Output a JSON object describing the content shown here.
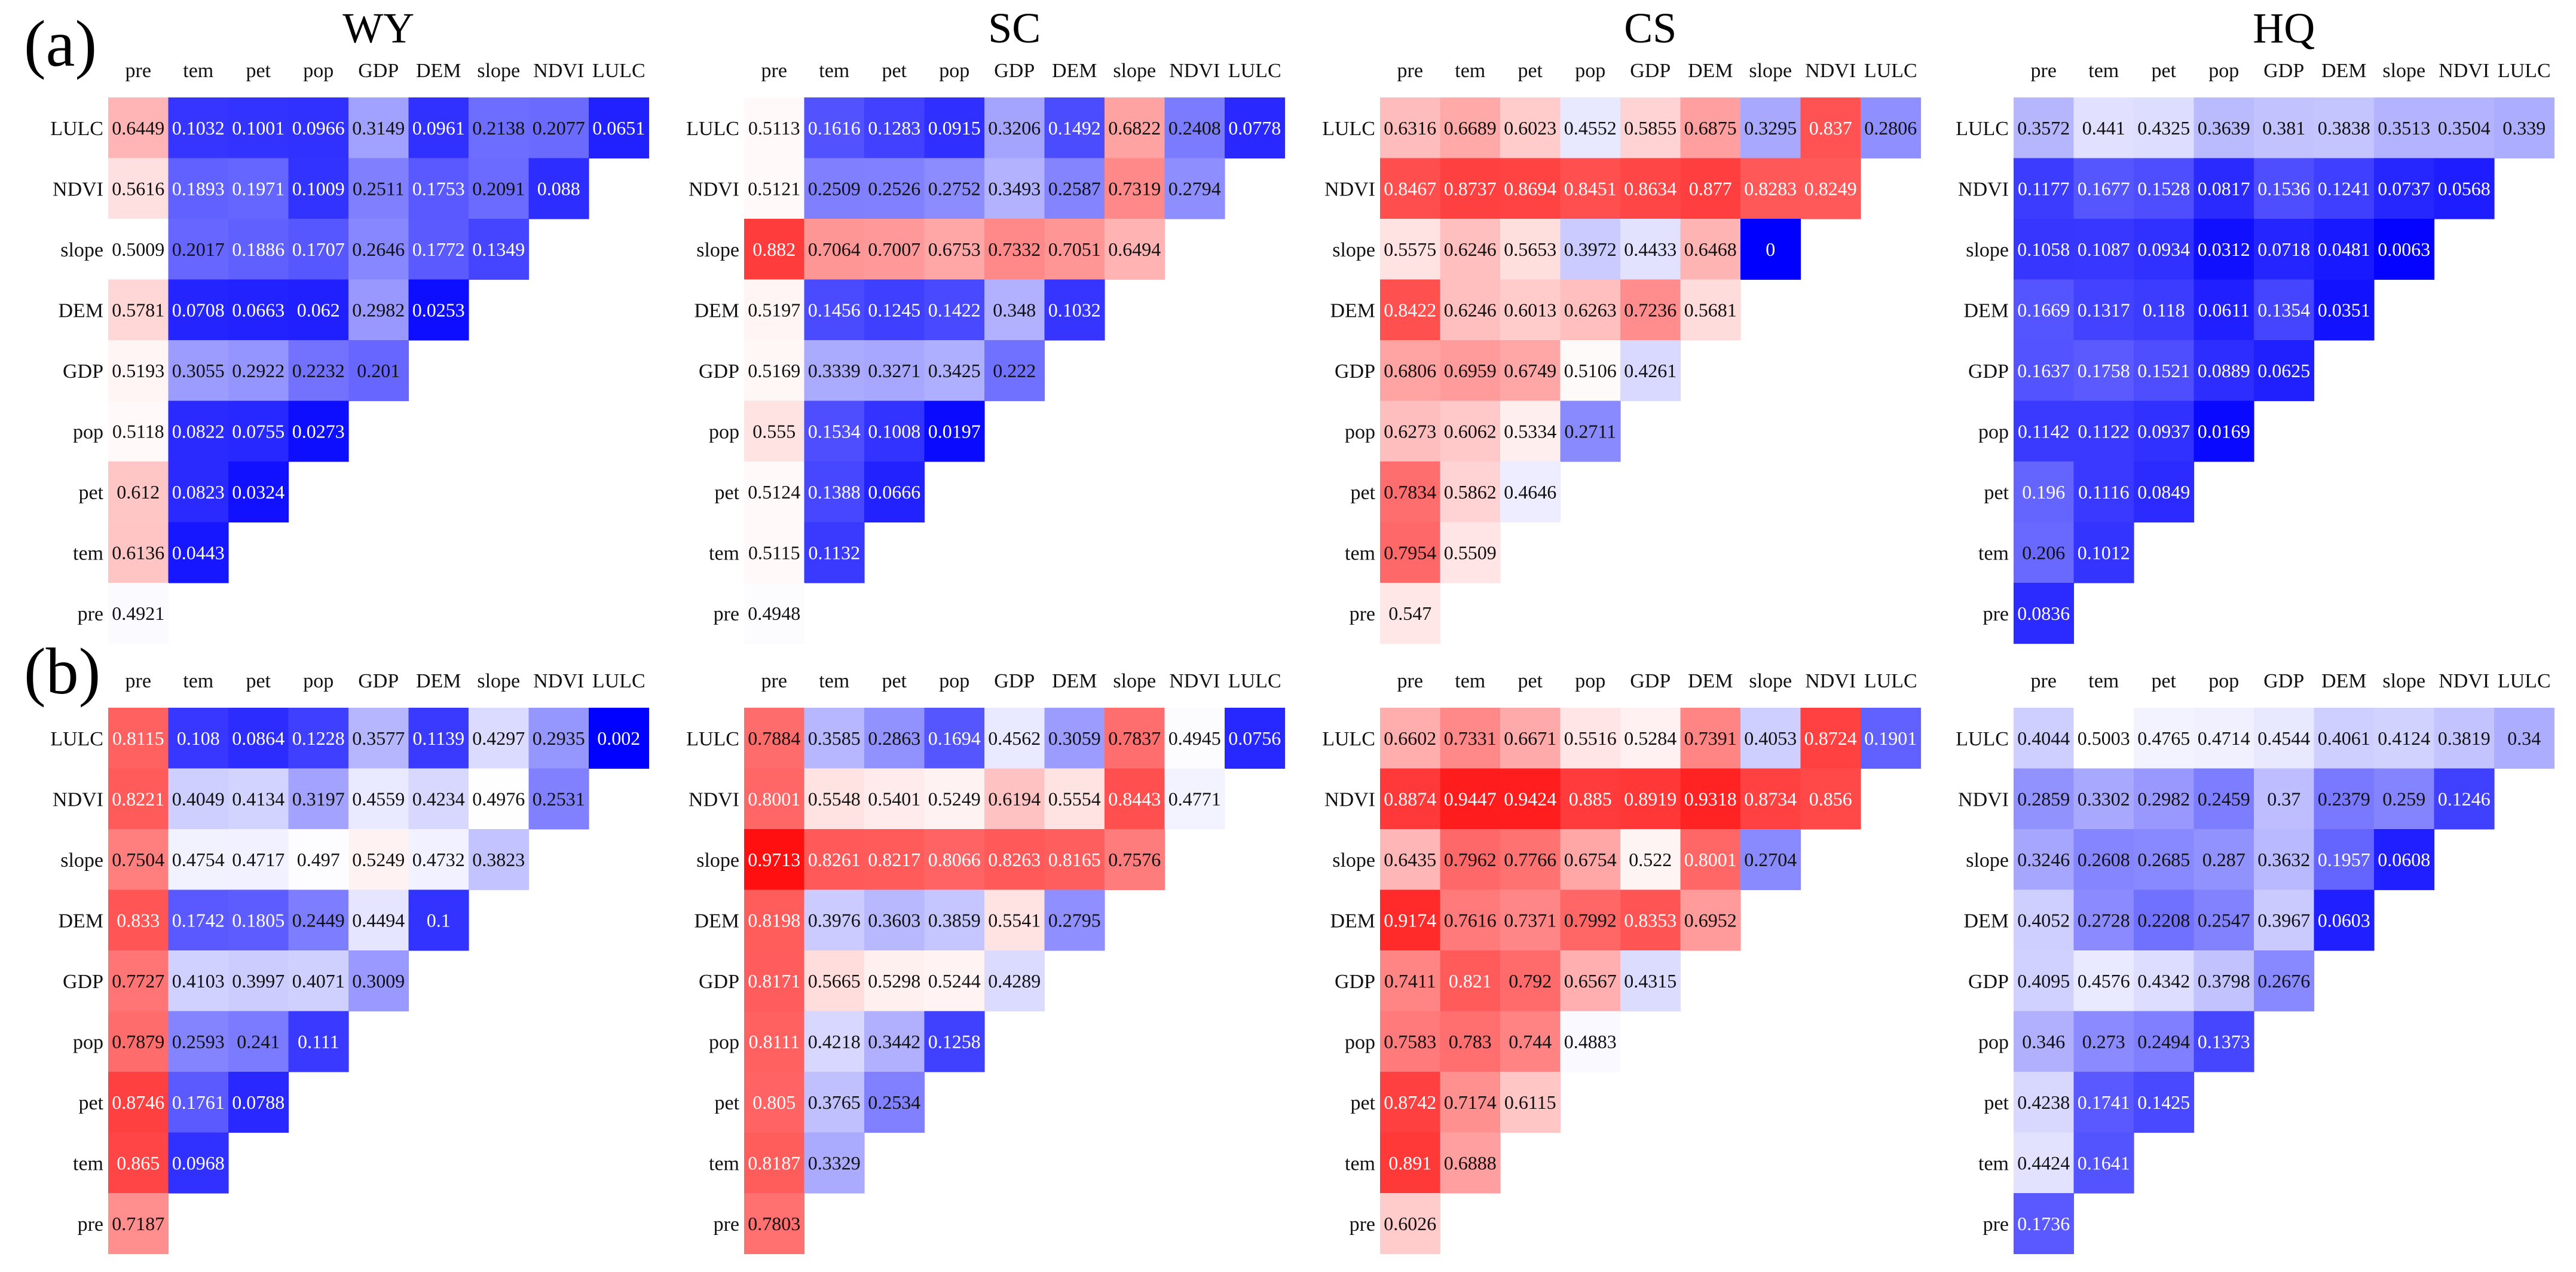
{
  "chart_data": {
    "type": "heatmap",
    "variables": [
      "pre",
      "tem",
      "pet",
      "pop",
      "GDP",
      "DEM",
      "slope",
      "NDVI",
      "LULC"
    ],
    "row_order_top_to_bottom": [
      "LULC",
      "NDVI",
      "slope",
      "DEM",
      "GDP",
      "pop",
      "pet",
      "tem",
      "pre"
    ],
    "column_order_left_to_right": [
      "pre",
      "tem",
      "pet",
      "pop",
      "GDP",
      "DEM",
      "slope",
      "NDVI",
      "LULC"
    ],
    "color_scale": {
      "low": "#0000ff",
      "mid": "#ffffff",
      "high": "#ff0000",
      "range": [
        0,
        1
      ]
    },
    "grid": false,
    "rows": [
      {
        "label": "(a)",
        "panels": [
          {
            "title": "WY",
            "values": [
              [
                0.6449,
                0.1032,
                0.1001,
                0.0966,
                0.3149,
                0.0961,
                0.2138,
                0.2077,
                0.0651
              ],
              [
                0.5616,
                0.1893,
                0.1971,
                0.1009,
                0.2511,
                0.1753,
                0.2091,
                0.088
              ],
              [
                0.5009,
                0.2017,
                0.1886,
                0.1707,
                0.2646,
                0.1772,
                0.1349
              ],
              [
                0.5781,
                0.0708,
                0.0663,
                0.062,
                0.2982,
                0.0253
              ],
              [
                0.5193,
                0.3055,
                0.2922,
                0.2232,
                0.201
              ],
              [
                0.5118,
                0.0822,
                0.0755,
                0.0273
              ],
              [
                0.612,
                0.0823,
                0.0324
              ],
              [
                0.6136,
                0.0443
              ],
              [
                0.4921
              ]
            ]
          },
          {
            "title": "SC",
            "values": [
              [
                0.5113,
                0.1616,
                0.1283,
                0.0915,
                0.3206,
                0.1492,
                0.6822,
                0.2408,
                0.0778
              ],
              [
                0.5121,
                0.2509,
                0.2526,
                0.2752,
                0.3493,
                0.2587,
                0.7319,
                0.2794
              ],
              [
                0.882,
                0.7064,
                0.7007,
                0.6753,
                0.7332,
                0.7051,
                0.6494
              ],
              [
                0.5197,
                0.1456,
                0.1245,
                0.1422,
                0.348,
                0.1032
              ],
              [
                0.5169,
                0.3339,
                0.3271,
                0.3425,
                0.222
              ],
              [
                0.555,
                0.1534,
                0.1008,
                0.0197
              ],
              [
                0.5124,
                0.1388,
                0.0666
              ],
              [
                0.5115,
                0.1132
              ],
              [
                0.4948
              ]
            ]
          },
          {
            "title": "CS",
            "values": [
              [
                0.6316,
                0.6689,
                0.6023,
                0.4552,
                0.5855,
                0.6875,
                0.3295,
                0.837,
                0.2806
              ],
              [
                0.8467,
                0.8737,
                0.8694,
                0.8451,
                0.8634,
                0.877,
                0.8283,
                0.8249
              ],
              [
                0.5575,
                0.6246,
                0.5653,
                0.3972,
                0.4433,
                0.6468,
                0.0
              ],
              [
                0.8422,
                0.6246,
                0.6013,
                0.6263,
                0.7236,
                0.5681
              ],
              [
                0.6806,
                0.6959,
                0.6749,
                0.5106,
                0.4261
              ],
              [
                0.6273,
                0.6062,
                0.5334,
                0.2711
              ],
              [
                0.7834,
                0.5862,
                0.4646
              ],
              [
                0.7954,
                0.5509
              ],
              [
                0.547
              ]
            ]
          },
          {
            "title": "HQ",
            "values": [
              [
                0.3572,
                0.441,
                0.4325,
                0.3639,
                0.381,
                0.3838,
                0.3513,
                0.3504,
                0.339
              ],
              [
                0.1177,
                0.1677,
                0.1528,
                0.0817,
                0.1536,
                0.1241,
                0.0737,
                0.0568
              ],
              [
                0.1058,
                0.1087,
                0.0934,
                0.0312,
                0.0718,
                0.0481,
                0.0063
              ],
              [
                0.1669,
                0.1317,
                0.118,
                0.0611,
                0.1354,
                0.0351
              ],
              [
                0.1637,
                0.1758,
                0.1521,
                0.0889,
                0.0625
              ],
              [
                0.1142,
                0.1122,
                0.0937,
                0.0169
              ],
              [
                0.196,
                0.1116,
                0.0849
              ],
              [
                0.206,
                0.1012
              ],
              [
                0.0836
              ]
            ]
          }
        ]
      },
      {
        "label": "(b)",
        "panels": [
          {
            "title": "",
            "values": [
              [
                0.8115,
                0.108,
                0.0864,
                0.1228,
                0.3577,
                0.1139,
                0.4297,
                0.2935,
                0.002
              ],
              [
                0.8221,
                0.4049,
                0.4134,
                0.3197,
                0.4559,
                0.4234,
                0.4976,
                0.2531
              ],
              [
                0.7504,
                0.4754,
                0.4717,
                0.497,
                0.5249,
                0.4732,
                0.3823
              ],
              [
                0.833,
                0.1742,
                0.1805,
                0.2449,
                0.4494,
                0.1
              ],
              [
                0.7727,
                0.4103,
                0.3997,
                0.4071,
                0.3009
              ],
              [
                0.7879,
                0.2593,
                0.241,
                0.111
              ],
              [
                0.8746,
                0.1761,
                0.0788
              ],
              [
                0.865,
                0.0968
              ],
              [
                0.7187
              ]
            ]
          },
          {
            "title": "",
            "values": [
              [
                0.7884,
                0.3585,
                0.2863,
                0.1694,
                0.4562,
                0.3059,
                0.7837,
                0.4945,
                0.0756
              ],
              [
                0.8001,
                0.5548,
                0.5401,
                0.5249,
                0.6194,
                0.5554,
                0.8443,
                0.4771
              ],
              [
                0.9713,
                0.8261,
                0.8217,
                0.8066,
                0.8263,
                0.8165,
                0.7576
              ],
              [
                0.8198,
                0.3976,
                0.3603,
                0.3859,
                0.5541,
                0.2795
              ],
              [
                0.8171,
                0.5665,
                0.5298,
                0.5244,
                0.4289
              ],
              [
                0.8111,
                0.4218,
                0.3442,
                0.1258
              ],
              [
                0.805,
                0.3765,
                0.2534
              ],
              [
                0.8187,
                0.3329
              ],
              [
                0.7803
              ]
            ]
          },
          {
            "title": "",
            "values": [
              [
                0.6602,
                0.7331,
                0.6671,
                0.5516,
                0.5284,
                0.7391,
                0.4053,
                0.8724,
                0.1901
              ],
              [
                0.8874,
                0.9447,
                0.9424,
                0.885,
                0.8919,
                0.9318,
                0.8734,
                0.856
              ],
              [
                0.6435,
                0.7962,
                0.7766,
                0.6754,
                0.522,
                0.8001,
                0.2704
              ],
              [
                0.9174,
                0.7616,
                0.7371,
                0.7992,
                0.8353,
                0.6952
              ],
              [
                0.7411,
                0.821,
                0.792,
                0.6567,
                0.4315
              ],
              [
                0.7583,
                0.783,
                0.744,
                0.4883
              ],
              [
                0.8742,
                0.7174,
                0.6115
              ],
              [
                0.891,
                0.6888
              ],
              [
                0.6026
              ]
            ]
          },
          {
            "title": "",
            "values": [
              [
                0.4044,
                0.5003,
                0.4765,
                0.4714,
                0.4544,
                0.4061,
                0.4124,
                0.3819,
                0.34
              ],
              [
                0.2859,
                0.3302,
                0.2982,
                0.2459,
                0.37,
                0.2379,
                0.259,
                0.1246
              ],
              [
                0.3246,
                0.2608,
                0.2685,
                0.287,
                0.3632,
                0.1957,
                0.0608
              ],
              [
                0.4052,
                0.2728,
                0.2208,
                0.2547,
                0.3967,
                0.0603
              ],
              [
                0.4095,
                0.4576,
                0.4342,
                0.3798,
                0.2676
              ],
              [
                0.346,
                0.273,
                0.2494,
                0.1373
              ],
              [
                0.4238,
                0.1741,
                0.1425
              ],
              [
                0.4424,
                0.1641
              ],
              [
                0.1736
              ]
            ]
          }
        ]
      }
    ]
  }
}
